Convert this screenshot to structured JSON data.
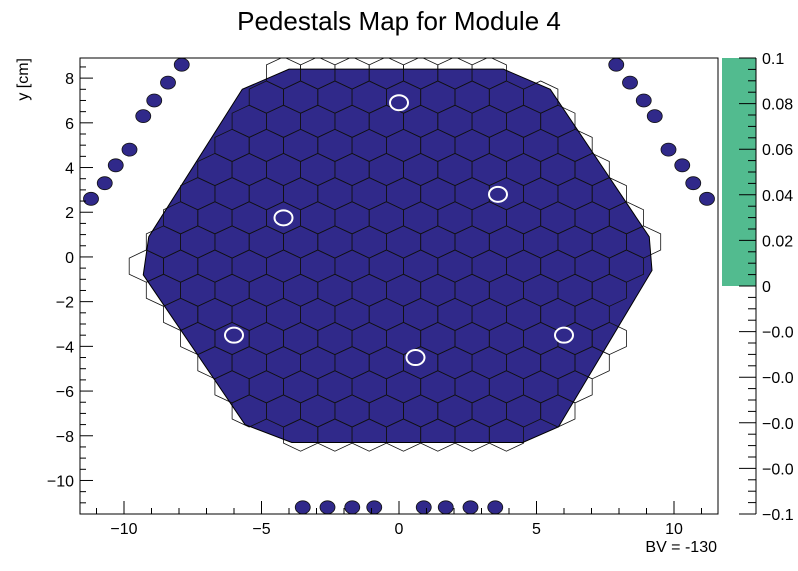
{
  "chart_data": {
    "type": "heatmap",
    "title": "Pedestals Map for Module 4",
    "xlabel": "",
    "ylabel": "y [cm]",
    "annotation": "BV = -130",
    "xlim": [
      -11.6,
      11.6
    ],
    "ylim": [
      -11.5,
      8.9
    ],
    "xticks": [
      -10,
      -5,
      0,
      5,
      10
    ],
    "xtick_labels": [
      "−10",
      "−5",
      "0",
      "5",
      "10"
    ],
    "yticks": [
      -10,
      -8,
      -6,
      -4,
      -2,
      0,
      2,
      4,
      6,
      8
    ],
    "ytick_labels": [
      "−10",
      "−8",
      "−6",
      "−4",
      "−2",
      "0",
      "2",
      "4",
      "6",
      "8"
    ],
    "colorbar": {
      "ticks": [
        0.1,
        0.08,
        0.06,
        0.04,
        0.02,
        0,
        -0.02,
        -0.04,
        -0.06,
        -0.08,
        -0.1
      ],
      "tick_labels": [
        "0.1",
        "0.08",
        "0.06",
        "0.04",
        "0.02",
        "0",
        "−0.0",
        "−0.0",
        "−0.0",
        "−0.0",
        "−0.1"
      ],
      "range": [
        -0.1,
        0.1
      ],
      "filled_range": [
        0,
        0.1
      ],
      "fill_color": "#52bb8f"
    },
    "module": {
      "outline": [
        [
          -9.1,
          0.9
        ],
        [
          -5.7,
          7.5
        ],
        [
          -4.0,
          8.4
        ],
        [
          3.8,
          8.4
        ],
        [
          5.5,
          7.5
        ],
        [
          9.1,
          0.9
        ],
        [
          9.2,
          -0.6
        ],
        [
          5.8,
          -7.6
        ],
        [
          4.5,
          -8.3
        ],
        [
          -3.9,
          -8.3
        ],
        [
          -5.6,
          -7.5
        ],
        [
          -9.3,
          -0.8
        ]
      ],
      "cell_value": 0,
      "cell_color": "#30298a",
      "hex_size": 0.72,
      "calibration_cells": [
        [
          -4.2,
          1.75
        ],
        [
          0.0,
          6.9
        ],
        [
          3.6,
          2.8
        ],
        [
          -6.0,
          -3.5
        ],
        [
          0.6,
          -4.5
        ],
        [
          6.0,
          -3.5
        ]
      ]
    },
    "edge_pads": [
      [
        -11.2,
        2.6
      ],
      [
        -10.7,
        3.3
      ],
      [
        -10.3,
        4.1
      ],
      [
        -9.8,
        4.8
      ],
      [
        -9.3,
        6.3
      ],
      [
        -8.9,
        7.0
      ],
      [
        -8.4,
        7.8
      ],
      [
        -7.9,
        8.6
      ],
      [
        7.9,
        8.6
      ],
      [
        8.4,
        7.8
      ],
      [
        8.9,
        7.0
      ],
      [
        9.3,
        6.3
      ],
      [
        9.8,
        4.8
      ],
      [
        10.3,
        4.1
      ],
      [
        10.7,
        3.3
      ],
      [
        11.2,
        2.6
      ],
      [
        -3.5,
        -11.2
      ],
      [
        -2.6,
        -11.2
      ],
      [
        -1.7,
        -11.2
      ],
      [
        -0.9,
        -11.2
      ],
      [
        0.9,
        -11.2
      ],
      [
        1.7,
        -11.2
      ],
      [
        2.6,
        -11.2
      ],
      [
        3.5,
        -11.2
      ]
    ]
  }
}
